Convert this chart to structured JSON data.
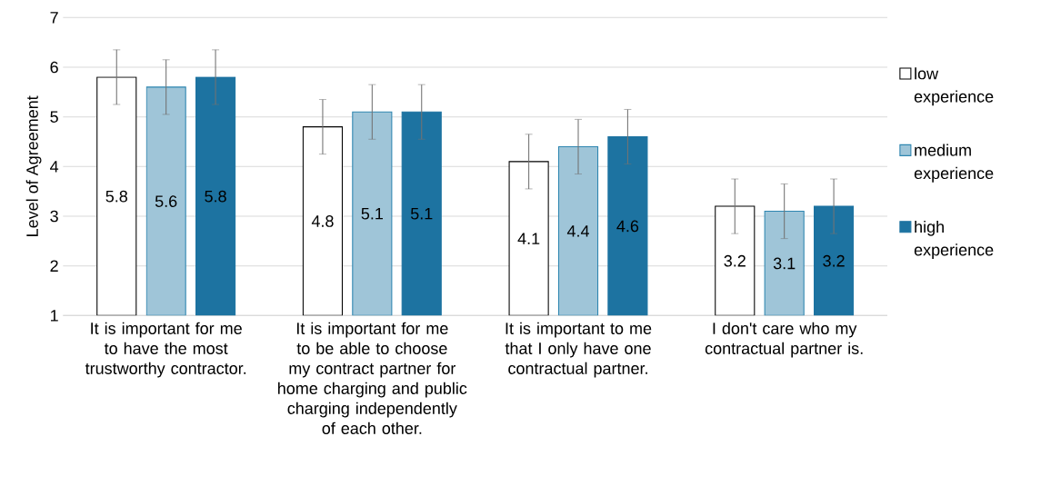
{
  "chart_data": {
    "type": "bar",
    "ylabel": "Level of Agreement",
    "categories": [
      "It is important for me to have the most trustworthy contractor.",
      "It is important for me to be able to choose my contract partner for home charging and public charging independently of each other.",
      "It is important to me that I only have one contractual partner.",
      "I don't care who my contractual partner is."
    ],
    "series": [
      {
        "name": "low experience",
        "color": "#ffffff",
        "values": [
          5.8,
          4.8,
          4.1,
          3.2
        ],
        "errors": [
          0.55,
          0.55,
          0.55,
          0.55
        ]
      },
      {
        "name": "medium experience",
        "color": "#9fc5d8",
        "values": [
          5.6,
          5.1,
          4.4,
          3.1
        ],
        "errors": [
          0.55,
          0.55,
          0.55,
          0.55
        ]
      },
      {
        "name": "high experience",
        "color": "#1d73a1",
        "values": [
          5.8,
          5.1,
          4.6,
          3.2
        ],
        "errors": [
          0.55,
          0.55,
          0.55,
          0.55
        ]
      }
    ],
    "ylim": [
      1,
      7
    ],
    "yticks": [
      1,
      2,
      3,
      4,
      5,
      6,
      7
    ],
    "grid": "y",
    "legend": "right",
    "data_labels": true
  }
}
